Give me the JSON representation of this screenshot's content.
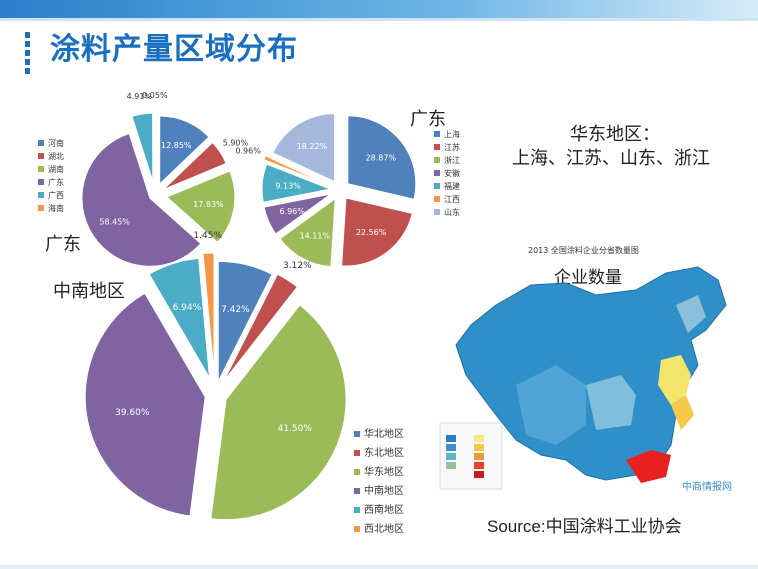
{
  "page": {
    "title": "涂料产量区域分布"
  },
  "labels": {
    "gd_left": "广东",
    "gd_top": "广东",
    "huadong_title": "华东地区：",
    "huadong_list": "上海、江苏、山东、浙江",
    "zhongnan": "中南地区",
    "map_title": "2013 全国涂料企业分省数量图",
    "map_caption": "企业数量",
    "source": "Source:中国涂料工业协会",
    "watermark": "中商情报网"
  },
  "colors": {
    "blue": "#4f81bd",
    "red": "#c0504d",
    "green": "#9bbb59",
    "purple": "#8064a2",
    "teal": "#4bacc6",
    "orange": "#f79646",
    "lightblue": "#a5b8db"
  },
  "chart_data": [
    {
      "type": "pie",
      "id": "zhongnan-provinces",
      "legend": [
        "河南",
        "湖北",
        "湖南",
        "广东",
        "广西",
        "海南"
      ],
      "values": [
        12.85,
        5.9,
        17.83,
        58.45,
        4.91,
        0.05
      ],
      "labels": [
        "12.85%",
        "5.90%",
        "17.83%",
        "58.45%",
        "4.91%",
        "0.05%"
      ]
    },
    {
      "type": "pie",
      "id": "huadong-provinces",
      "legend": [
        "上海",
        "江苏",
        "浙江",
        "安徽",
        "福建",
        "江西",
        "山东"
      ],
      "values": [
        28.87,
        22.56,
        14.11,
        6.96,
        9.13,
        0.96,
        18.22
      ],
      "labels": [
        "28.87%",
        "22.56%",
        "14.11%",
        "6.96%",
        "9.13%",
        "0.96%",
        "18.22%"
      ]
    },
    {
      "type": "pie",
      "id": "regions",
      "legend": [
        "华北地区",
        "东北地区",
        "华东地区",
        "中南地区",
        "西南地区",
        "西北地区"
      ],
      "values": [
        7.42,
        3.12,
        41.5,
        39.6,
        6.94,
        1.45
      ],
      "labels": [
        "7.42%",
        "3.12%",
        "41.50%",
        "39.60%",
        "6.94%",
        "1.45%"
      ]
    }
  ]
}
